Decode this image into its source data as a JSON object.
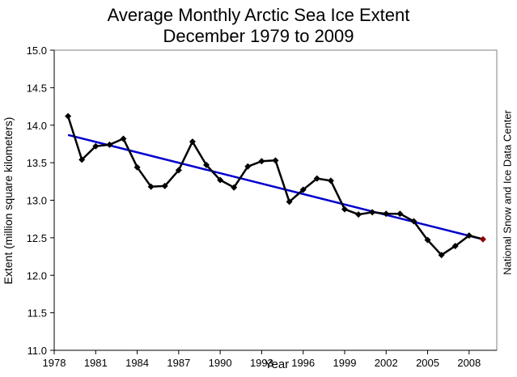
{
  "chart_data": {
    "type": "line",
    "title": "Average Monthly Arctic Sea Ice Extent",
    "subtitle": "December 1979 to 2009",
    "xlabel": "Year",
    "ylabel": "Extent (million square kilometers)",
    "credit": "National Snow and Ice Data Center",
    "xlim": [
      1978,
      2010
    ],
    "ylim": [
      11.0,
      15.0
    ],
    "x_ticks": [
      1978,
      1981,
      1984,
      1987,
      1990,
      1993,
      1996,
      1999,
      2002,
      2005,
      2008
    ],
    "y_ticks": [
      "11.0",
      "11.5",
      "12.0",
      "12.5",
      "13.0",
      "13.5",
      "14.0",
      "14.5",
      "15.0"
    ],
    "grid": false,
    "series": [
      {
        "color": "#000000",
        "x": [
          1979,
          1980,
          1981,
          1982,
          1983,
          1984,
          1985,
          1986,
          1987,
          1988,
          1989,
          1990,
          1991,
          1992,
          1993,
          1994,
          1995,
          1996,
          1997,
          1998,
          1999,
          2000,
          2001,
          2002,
          2003,
          2004,
          2005,
          2006,
          2007,
          2008,
          2009
        ],
        "y": [
          14.12,
          13.54,
          13.72,
          13.74,
          13.82,
          13.44,
          13.18,
          13.19,
          13.4,
          13.78,
          13.47,
          13.27,
          13.17,
          13.45,
          13.52,
          13.53,
          12.98,
          13.14,
          13.29,
          13.26,
          12.88,
          12.81,
          12.84,
          12.82,
          12.82,
          12.72,
          12.47,
          12.27,
          12.39,
          12.53,
          12.48
        ],
        "last_point_color": "#8b0000"
      }
    ],
    "trend": {
      "color": "#0000cc",
      "x": [
        1979,
        2009
      ],
      "y": [
        13.87,
        12.48
      ]
    }
  }
}
